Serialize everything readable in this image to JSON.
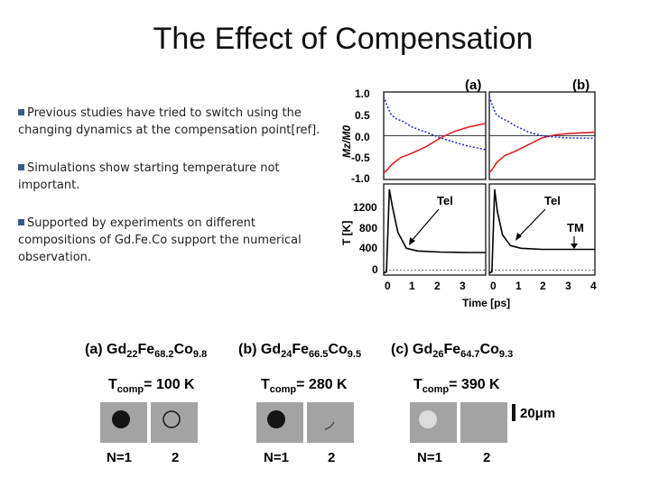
{
  "slide": {
    "title": "The Effect of Compensation",
    "bullets": [
      "Previous studies have tried to switch using the changing dynamics at the compensation point[ref].",
      "Simulations show starting temperature not important.",
      "Supported by experiments on different compositions of Gd.Fe.Co support the numerical observation."
    ]
  },
  "chart_data": {
    "type": "line",
    "panels": [
      {
        "label": "(a)",
        "ylabel": "Mz/M0",
        "yticks": [
          "1.0",
          "0.5",
          "0.0",
          "-0.5",
          "-1.0"
        ],
        "ylim": [
          -1.0,
          1.0
        ],
        "series": [
          {
            "name": "red",
            "x": [
              0,
              0.1,
              0.3,
              0.6,
              1,
              1.5,
              2,
              2.5,
              3,
              3.6
            ],
            "y": [
              -0.85,
              -0.8,
              -0.65,
              -0.5,
              -0.4,
              -0.25,
              -0.05,
              0.1,
              0.2,
              0.28
            ]
          },
          {
            "name": "blue-dotted",
            "x": [
              0,
              0.1,
              0.25,
              0.4,
              0.7,
              1,
              1.5,
              2,
              2.5,
              3,
              3.6
            ],
            "y": [
              0.9,
              0.72,
              0.5,
              0.4,
              0.32,
              0.2,
              0.08,
              -0.05,
              -0.15,
              -0.24,
              -0.32
            ]
          }
        ]
      },
      {
        "label": "(b)",
        "ylabel": "",
        "yticks": [],
        "ylim": [
          -1.0,
          1.0
        ],
        "series": [
          {
            "name": "red",
            "x": [
              0,
              0.1,
              0.3,
              0.6,
              1,
              1.5,
              2,
              2.5,
              3,
              4
            ],
            "y": [
              -0.85,
              -0.78,
              -0.6,
              -0.45,
              -0.35,
              -0.2,
              -0.05,
              0.02,
              0.05,
              0.08
            ]
          },
          {
            "name": "blue-dotted",
            "x": [
              0,
              0.1,
              0.25,
              0.4,
              0.7,
              1,
              1.5,
              2,
              2.5,
              3,
              4
            ],
            "y": [
              0.9,
              0.72,
              0.5,
              0.42,
              0.33,
              0.22,
              0.08,
              0.0,
              -0.03,
              -0.05,
              -0.06
            ]
          }
        ]
      },
      {
        "label": "",
        "ylabel": "T [K]",
        "yticks": [
          "1200",
          "800",
          "400",
          "0"
        ],
        "ylim": [
          0,
          1700
        ],
        "annotation": "Tel",
        "series": [
          {
            "name": "Tel",
            "x": [
              0,
              0.1,
              0.2,
              0.3,
              0.5,
              0.8,
              1.2,
              2,
              3,
              3.6
            ],
            "y": [
              40,
              60,
              1600,
              1300,
              800,
              500,
              450,
              430,
              420,
              420
            ]
          }
        ]
      },
      {
        "label": "",
        "ylabel": "",
        "yticks": [],
        "ylim": [
          0,
          1700
        ],
        "annotation": "Tel",
        "annotation2": "TM",
        "series": [
          {
            "name": "Tel",
            "x": [
              0,
              0.1,
              0.2,
              0.3,
              0.5,
              0.8,
              1.2,
              2,
              3,
              4
            ],
            "y": [
              40,
              60,
              1600,
              1200,
              750,
              550,
              500,
              480,
              480,
              480
            ]
          }
        ]
      }
    ],
    "xticks_left": [
      "0",
      "1",
      "2",
      "3"
    ],
    "xticks_right": [
      "0",
      "1",
      "2",
      "3",
      "4"
    ],
    "xlabel": "Time [ps]"
  },
  "experiment": {
    "panels": [
      {
        "label": "(a) Gd",
        "s1": "22",
        "m1": "Fe",
        "s2": "68.2",
        "m2": "Co",
        "s3": "9.8",
        "tcomp_value": "= 100 K"
      },
      {
        "label": "(b) Gd",
        "s1": "24",
        "m1": "Fe",
        "s2": "66.5",
        "m2": "Co",
        "s3": "9.5",
        "tcomp_value": "= 280 K"
      },
      {
        "label": "(c) Gd",
        "s1": "26",
        "m1": "Fe",
        "s2": "64.7",
        "m2": "Co",
        "s3": "9.3",
        "tcomp_value": "= 390 K"
      }
    ],
    "tcomp_T": "T",
    "tcomp_sub": "comp",
    "n_label": "N=1",
    "n2_label": "2",
    "scale_label": "20μm"
  },
  "colors": {
    "red": "#dd2222",
    "blue": "#2233cc",
    "accent": "#3a5a8a"
  }
}
